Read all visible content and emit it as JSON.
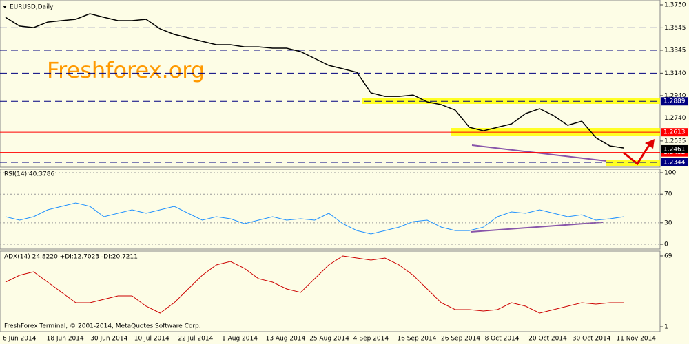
{
  "chart_data": [
    {
      "type": "line",
      "title": "EURUSD,Daily",
      "watermark": "Freshforex.org",
      "color": "#000000",
      "values": [
        1.3639,
        1.356,
        1.3547,
        1.3596,
        1.3609,
        1.3621,
        1.367,
        1.3639,
        1.3609,
        1.3609,
        1.3621,
        1.3535,
        1.3486,
        1.3455,
        1.3424,
        1.3394,
        1.3394,
        1.3375,
        1.3375,
        1.3363,
        1.3363,
        1.3332,
        1.3271,
        1.321,
        1.3179,
        1.3148,
        1.2964,
        1.2933,
        1.2933,
        1.2945,
        1.2884,
        1.2859,
        1.281,
        1.2657,
        1.2626,
        1.2657,
        1.2687,
        1.278,
        1.2823,
        1.2761,
        1.2675,
        1.2712,
        1.2565,
        1.2491,
        1.2472
      ],
      "ylim": [
        1.2301,
        1.3793
      ],
      "yticks": [
        {
          "value": 1.375,
          "label": "1.3750"
        },
        1.3545,
        1.3345,
        {
          "value": 1.314,
          "label": "1.3140"
        },
        {
          "value": 1.294,
          "label": "1.2940"
        },
        {
          "value": 1.274,
          "label": "1.2740"
        },
        1.2535
      ],
      "dashed_levels": [
        1.3545,
        1.3345,
        1.314
      ],
      "levels": [
        {
          "value": 1.2889,
          "color": "#000080",
          "line": "dashed"
        },
        {
          "value": 1.2613,
          "color": "#ff0000",
          "line": "solid"
        },
        {
          "value": 1.2432,
          "color": "#ff0000",
          "line": "solid"
        },
        {
          "value": 1.2344,
          "color": "#000080",
          "line": "dashed"
        }
      ],
      "current_price": 1.2461,
      "x_tick_labels": [
        "6 Jun 2014",
        "18 Jun 2014",
        "30 Jun 2014",
        "10 Jul 2014",
        "22 Jul 2014",
        "1 Aug 2014",
        "13 Aug 2014",
        "25 Aug 2014",
        "4 Sep 2014",
        "16 Sep 2014",
        "26 Sep 2014",
        "8 Oct 2014",
        "20 Oct 2014",
        "30 Oct 2014",
        "11 Nov 2014"
      ],
      "footer": "FreshForex Terminal, © 2001-2014, MetaQuotes Software Corp."
    },
    {
      "type": "line",
      "title": "RSI(14) 40.3786",
      "color": "#1e90ff",
      "values": [
        38.5,
        33.7,
        38.5,
        48.1,
        52.9,
        57.7,
        52.9,
        38.5,
        43.3,
        48.1,
        43.3,
        48.1,
        52.9,
        43.3,
        33.7,
        38.5,
        35.6,
        28.8,
        33.7,
        38.5,
        33.7,
        35.6,
        33.7,
        43.3,
        28.8,
        19.2,
        14.4,
        19.2,
        24.0,
        31.7,
        33.7,
        24.0,
        19.2,
        19.2,
        24.0,
        38.5,
        45.2,
        43.3,
        48.1,
        43.3,
        38.5,
        41.3,
        33.7,
        35.6,
        38.5
      ],
      "ylim": [
        -6.7,
        104.8
      ],
      "yticks": [
        100,
        70,
        30,
        0
      ],
      "grid": true
    },
    {
      "type": "line",
      "title": "ADX(14) 24.8220 +DI:12.7023 -DI:20.7211",
      "color": "#cc0000",
      "values": [
        43.9,
        50.5,
        53.8,
        43.9,
        34.0,
        24.1,
        24.1,
        27.4,
        30.7,
        30.7,
        20.8,
        14.2,
        24.1,
        37.3,
        50.5,
        60.4,
        63.7,
        57.1,
        47.2,
        43.9,
        37.3,
        34.0,
        47.2,
        60.4,
        69.0,
        67.0,
        65.0,
        67.0,
        60.4,
        50.5,
        37.3,
        24.1,
        17.5,
        17.5,
        16.2,
        17.5,
        24.1,
        20.8,
        14.2,
        17.5,
        20.8,
        24.1,
        22.8,
        24.1,
        24.1
      ],
      "ylim": [
        -3.6,
        73.6
      ],
      "yticks": [
        69,
        1
      ]
    }
  ]
}
